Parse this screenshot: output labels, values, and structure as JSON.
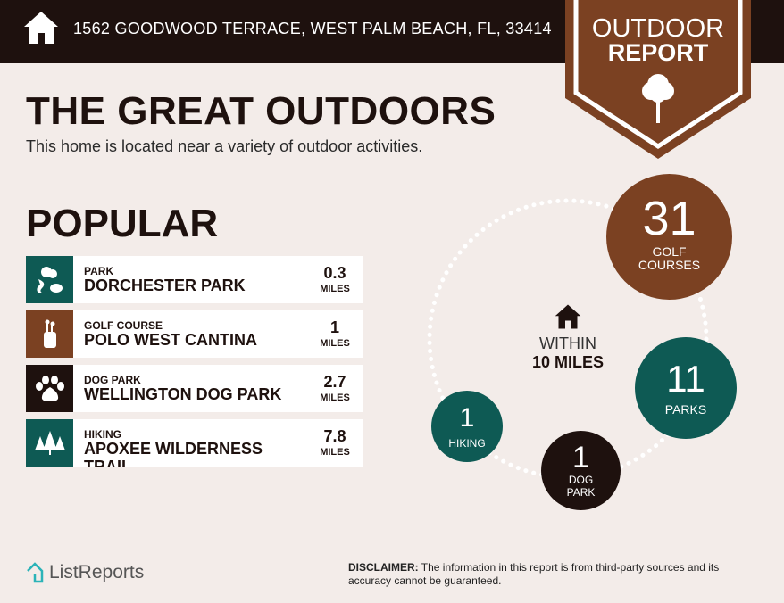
{
  "header": {
    "address": "1562 GOODWOOD TERRACE, WEST PALM BEACH, FL, 33414",
    "badge_line1": "OUTDOOR",
    "badge_line2": "REPORT"
  },
  "title": "THE GREAT OUTDOORS",
  "subtitle": "This home is located near a variety of outdoor activities.",
  "popular": {
    "heading": "POPULAR",
    "items": [
      {
        "category": "PARK",
        "name": "DORCHESTER PARK",
        "distance": "0.3",
        "unit": "MILES",
        "icon": "park-icon",
        "color": "#0e5a54"
      },
      {
        "category": "GOLF COURSE",
        "name": "POLO WEST CANTINA",
        "distance": "1",
        "unit": "MILES",
        "icon": "golf-bag-icon",
        "color": "#7b4122"
      },
      {
        "category": "DOG PARK",
        "name": "WELLINGTON DOG PARK",
        "distance": "2.7",
        "unit": "MILES",
        "icon": "paw-icon",
        "color": "#1e110e"
      },
      {
        "category": "HIKING",
        "name": "APOXEE WILDERNESS TRAIL",
        "distance": "7.8",
        "unit": "MILES",
        "icon": "pine-trees-icon",
        "color": "#0e5a54"
      }
    ]
  },
  "summary": {
    "within_line1": "WITHIN",
    "within_line2": "10 MILES",
    "golf": {
      "count": "31",
      "label1": "GOLF",
      "label2": "COURSES",
      "color": "#7b4122"
    },
    "parks": {
      "count": "11",
      "label": "PARKS",
      "color": "#0e5a54"
    },
    "dog": {
      "count": "1",
      "label1": "DOG",
      "label2": "PARK",
      "color": "#1e110e"
    },
    "hiking": {
      "count": "1",
      "label": "HIKING",
      "color": "#0e5a54"
    }
  },
  "footer": {
    "logo": "ListReports",
    "disclaimer_label": "DISCLAIMER:",
    "disclaimer": " The information in this report is from third-party sources and its accuracy cannot be guaranteed."
  }
}
